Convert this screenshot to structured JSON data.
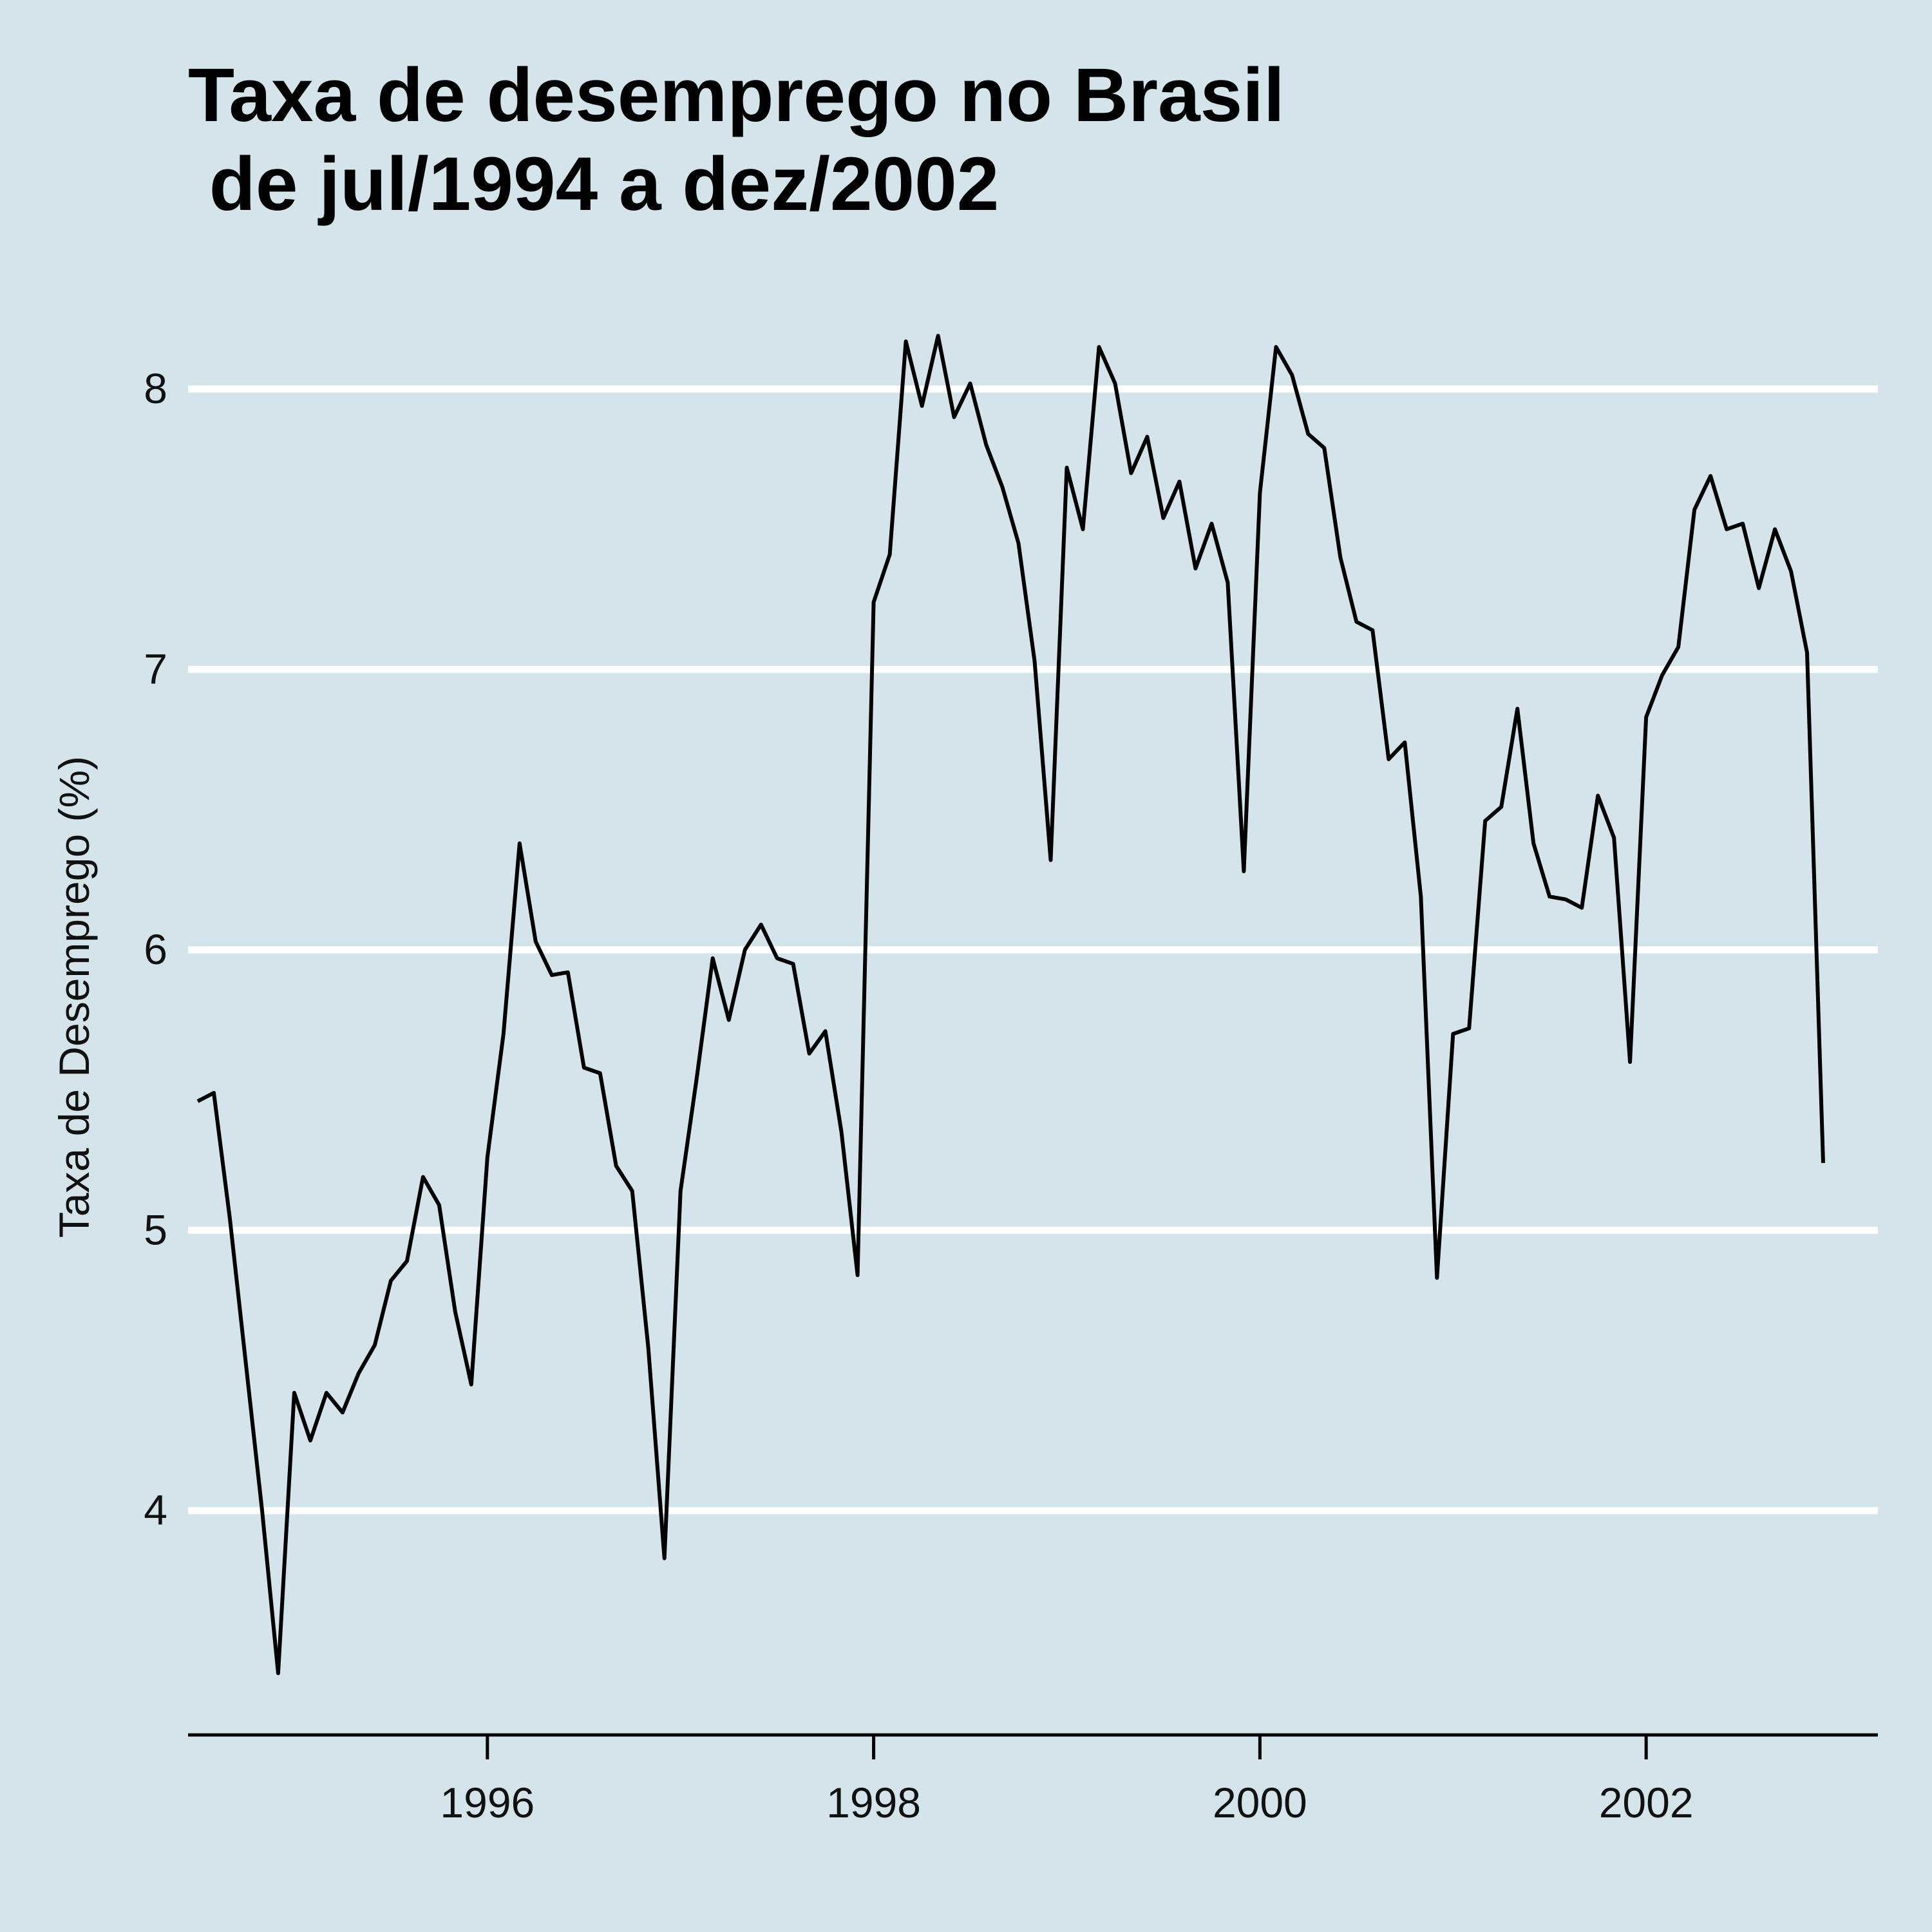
{
  "colors": {
    "background": "#d5e4eb",
    "gridline": "#ffffff",
    "line": "#000000"
  },
  "chart_data": {
    "type": "line",
    "title_lines": [
      "Taxa de desemprego no Brasil",
      " de jul/1994 a dez/2002"
    ],
    "xlabel": "",
    "ylabel": "Taxa de Desemprego (%)",
    "x_unit": "year",
    "xlim": [
      1994.45,
      2003.2
    ],
    "ylim": [
      3.2,
      8.4
    ],
    "x_ticks": [
      {
        "value": 1996,
        "label": "1996"
      },
      {
        "value": 1998,
        "label": "1998"
      },
      {
        "value": 2000,
        "label": "2000"
      },
      {
        "value": 2002,
        "label": "2002"
      }
    ],
    "y_ticks": [
      {
        "value": 4,
        "label": "4"
      },
      {
        "value": 5,
        "label": "5"
      },
      {
        "value": 6,
        "label": "6"
      },
      {
        "value": 7,
        "label": "7"
      },
      {
        "value": 8,
        "label": "8"
      }
    ],
    "grid": "horizontal",
    "legend": "none",
    "series": [
      {
        "x": [
          "1994-07",
          "1994-08",
          "1994-09",
          "1994-10",
          "1994-11",
          "1994-12",
          "1995-01",
          "1995-02",
          "1995-03",
          "1995-04",
          "1995-05",
          "1995-06",
          "1995-07",
          "1995-08",
          "1995-09",
          "1995-10",
          "1995-11",
          "1995-12",
          "1996-01",
          "1996-02",
          "1996-03",
          "1996-04",
          "1996-05",
          "1996-06",
          "1996-07",
          "1996-08",
          "1996-09",
          "1996-10",
          "1996-11",
          "1996-12",
          "1997-01",
          "1997-02",
          "1997-03",
          "1997-04",
          "1997-05",
          "1997-06",
          "1997-07",
          "1997-08",
          "1997-09",
          "1997-10",
          "1997-11",
          "1997-12",
          "1998-01",
          "1998-02",
          "1998-03",
          "1998-04",
          "1998-05",
          "1998-06",
          "1998-07",
          "1998-08",
          "1998-09",
          "1998-10",
          "1998-11",
          "1998-12",
          "1999-01",
          "1999-02",
          "1999-03",
          "1999-04",
          "1999-05",
          "1999-06",
          "1999-07",
          "1999-08",
          "1999-09",
          "1999-10",
          "1999-11",
          "1999-12",
          "2000-01",
          "2000-02",
          "2000-03",
          "2000-04",
          "2000-05",
          "2000-06",
          "2000-07",
          "2000-08",
          "2000-09",
          "2000-10",
          "2000-11",
          "2000-12",
          "2001-01",
          "2001-02",
          "2001-03",
          "2001-04",
          "2001-05",
          "2001-06",
          "2001-07",
          "2001-08",
          "2001-09",
          "2001-10",
          "2001-11",
          "2001-12",
          "2002-01",
          "2002-02",
          "2002-03",
          "2002-04",
          "2002-05",
          "2002-06",
          "2002-07",
          "2002-08",
          "2002-09",
          "2002-10",
          "2002-11",
          "2002-12"
        ],
        "values": [
          5.46,
          5.49,
          5.04,
          4.52,
          4.0,
          3.42,
          4.42,
          4.25,
          4.42,
          4.35,
          4.49,
          4.59,
          4.82,
          4.89,
          5.19,
          5.09,
          4.71,
          4.45,
          5.26,
          5.7,
          6.38,
          6.03,
          5.91,
          5.92,
          5.58,
          5.56,
          5.23,
          5.14,
          4.58,
          3.83,
          5.14,
          5.54,
          5.97,
          5.75,
          6.0,
          6.09,
          5.97,
          5.95,
          5.63,
          5.71,
          5.35,
          4.84,
          7.24,
          7.41,
          8.17,
          7.94,
          8.19,
          7.9,
          8.02,
          7.8,
          7.65,
          7.45,
          7.03,
          6.32,
          7.72,
          7.5,
          8.15,
          8.02,
          7.7,
          7.83,
          7.54,
          7.67,
          7.36,
          7.52,
          7.31,
          6.28,
          7.63,
          8.15,
          8.05,
          7.84,
          7.79,
          7.4,
          7.17,
          7.14,
          6.68,
          6.74,
          6.19,
          4.83,
          5.7,
          5.72,
          6.46,
          6.51,
          6.86,
          6.38,
          6.19,
          6.18,
          6.15,
          6.55,
          6.4,
          5.6,
          6.83,
          6.98,
          7.08,
          7.57,
          7.69,
          7.5,
          7.52,
          7.29,
          7.5,
          7.35,
          7.06,
          5.24
        ]
      }
    ]
  }
}
